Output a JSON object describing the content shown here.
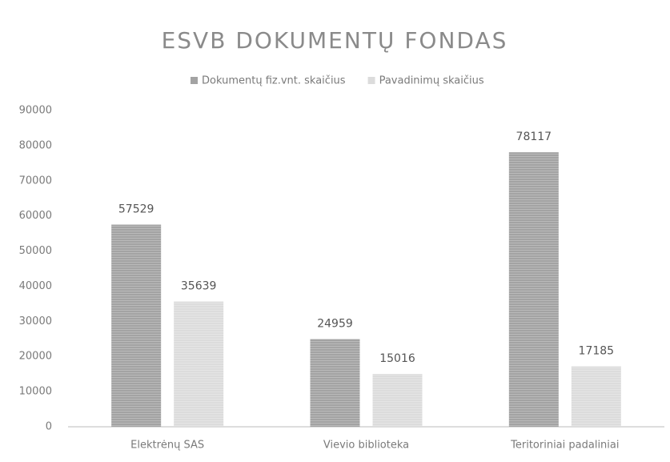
{
  "chart_data": {
    "type": "bar",
    "title": "ESVB DOKUMENTŲ FONDAS",
    "categories": [
      "Elektrėnų SAS",
      "Vievio biblioteka",
      "Teritoriniai padaliniai"
    ],
    "series": [
      {
        "name": "Dokumentų fiz.vnt. skaičius",
        "color": "#a3a3a3",
        "values": [
          57529,
          24959,
          78117
        ]
      },
      {
        "name": "Pavadinimų skaičius",
        "color": "#dcdcdc",
        "values": [
          35639,
          15016,
          17185
        ]
      }
    ],
    "ylim": [
      0,
      90000
    ],
    "yticks": [
      0,
      10000,
      20000,
      30000,
      40000,
      50000,
      60000,
      70000,
      80000,
      90000
    ],
    "grid": false,
    "legend": "top"
  }
}
